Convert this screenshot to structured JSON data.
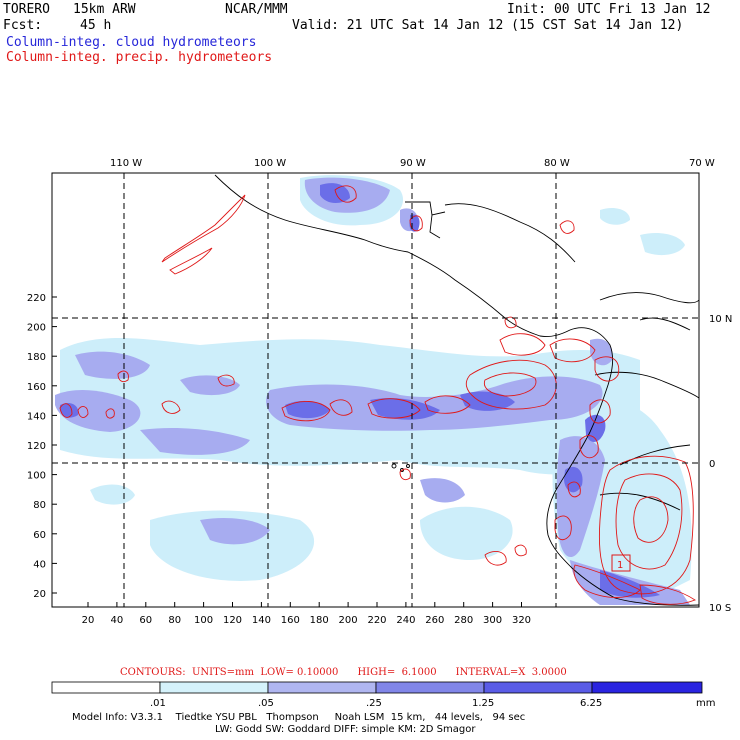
{
  "header": {
    "model": "TORERO",
    "resolution": "15km ARW",
    "org": "NCAR/MMM",
    "init": "Init: 00 UTC Fri 13 Jan 12",
    "fcst_label": "Fcst:",
    "fcst_value": "45 h",
    "valid": "Valid: 21 UTC Sat 14 Jan 12 (15 CST Sat 14 Jan 12)",
    "field1": "Column-integ. cloud hydrometeors",
    "field2": "Column-integ. precip. hydrometeors"
  },
  "map": {
    "top_lon_labels": [
      "110 W",
      "100 W",
      "90 W",
      "80 W",
      "70 W"
    ],
    "right_lat_labels": [
      "10 N",
      "0",
      "10 S"
    ],
    "left_y_ticks": [
      "20",
      "40",
      "60",
      "80",
      "100",
      "120",
      "140",
      "160",
      "180",
      "200",
      "220"
    ],
    "bottom_x_ticks": [
      "20",
      "40",
      "60",
      "80",
      "100",
      "120",
      "140",
      "160",
      "180",
      "200",
      "220",
      "240",
      "260",
      "280",
      "300",
      "320"
    ],
    "colors": {
      "cloud_fill_light": "#cdeefa",
      "cloud_fill_mid": "#a7acf0",
      "cloud_fill_dark": "#6b6ee8",
      "precip_contour": "#e01818",
      "coast": "#000000"
    },
    "box_label": "1"
  },
  "contours": {
    "text": "CONTOURS:  UNITS=mm  LOW= 0.10000      HIGH=  6.1000      INTERVAL=X  3.0000"
  },
  "colorbar": {
    "labels": [
      ".01",
      ".05",
      ".25",
      "1.25",
      "6.25"
    ],
    "unit": "mm",
    "colors": [
      "#ffffff",
      "#d5f2fb",
      "#b0b6f0",
      "#8186e8",
      "#5a5ce6",
      "#2a24e0"
    ]
  },
  "footer": {
    "line1": "Model Info: V3.3.1    Tiedtke YSU PBL   Thompson     Noah LSM  15 km,   44 levels,   94 sec",
    "line2": "LW: Godd SW: Goddard DIFF: simple KM: 2D Smagor"
  }
}
